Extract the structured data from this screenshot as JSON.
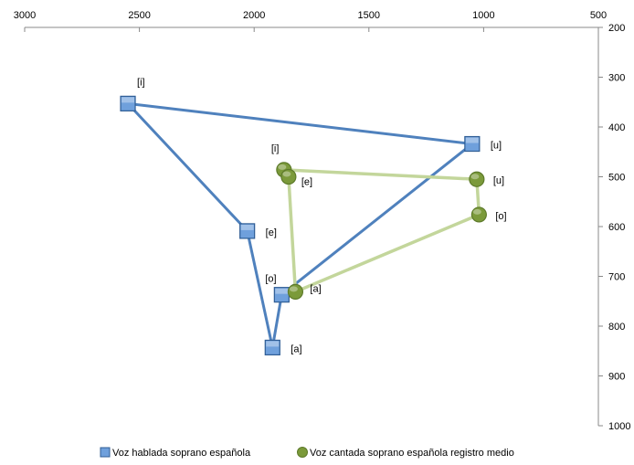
{
  "chart_data": {
    "type": "scatter",
    "title": "",
    "xlabel": "",
    "ylabel": "",
    "x_reversed": true,
    "y_reversed": true,
    "xlim": [
      3000,
      500
    ],
    "ylim": [
      200,
      1000
    ],
    "x_ticks": [
      3000,
      2500,
      2000,
      1500,
      1000,
      500
    ],
    "y_ticks": [
      200,
      300,
      400,
      500,
      600,
      700,
      800,
      900,
      1000
    ],
    "grid": false,
    "legend_position": "bottom",
    "series": [
      {
        "name": "Voz hablada soprano española",
        "marker": "square",
        "color": "#4f81bd",
        "marker_fill": "#6fa0dc",
        "line_color": "#4f81bd",
        "closed": true,
        "points": [
          {
            "label": "[i]",
            "x": 2550,
            "y": 353
          },
          {
            "label": "[e]",
            "x": 2030,
            "y": 609
          },
          {
            "label": "[a]",
            "x": 1920,
            "y": 843
          },
          {
            "label": "[o]",
            "x": 1880,
            "y": 737
          },
          {
            "label": "[u]",
            "x": 1050,
            "y": 434
          }
        ]
      },
      {
        "name": "Voz cantada soprano española registro medio",
        "marker": "circle",
        "color": "#9bbb59",
        "marker_fill": "#7b9a3a",
        "line_color": "#c3d69b",
        "closed": true,
        "points": [
          {
            "label": "[i]",
            "x": 1870,
            "y": 486
          },
          {
            "label": "[e]",
            "x": 1850,
            "y": 500
          },
          {
            "label": "[a]",
            "x": 1820,
            "y": 731
          },
          {
            "label": "[o]",
            "x": 1020,
            "y": 576
          },
          {
            "label": "[u]",
            "x": 1030,
            "y": 505
          }
        ]
      }
    ]
  }
}
